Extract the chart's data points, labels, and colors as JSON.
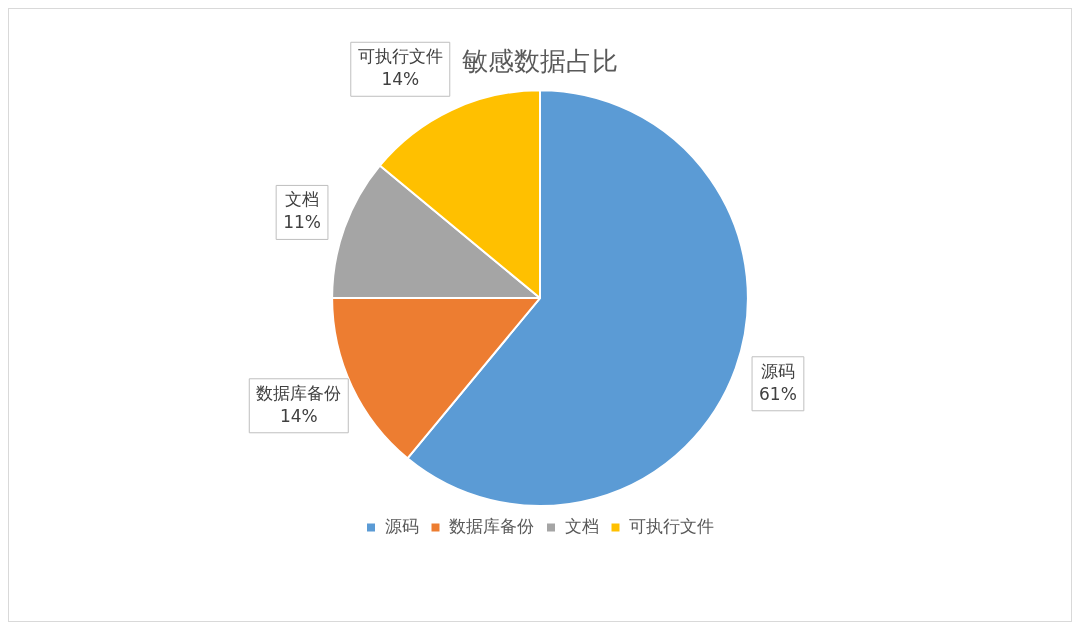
{
  "chart_data": {
    "type": "pie",
    "title": "敏感数据占比",
    "categories": [
      "源码",
      "数据库备份",
      "文档",
      "可执行文件"
    ],
    "values": [
      61,
      14,
      11,
      14
    ],
    "colors": [
      "#5b9bd5",
      "#ed7d31",
      "#a5a5a5",
      "#ffc000"
    ],
    "value_labels": [
      "61%",
      "14%",
      "11%",
      "14%"
    ],
    "legend": "bottom"
  }
}
